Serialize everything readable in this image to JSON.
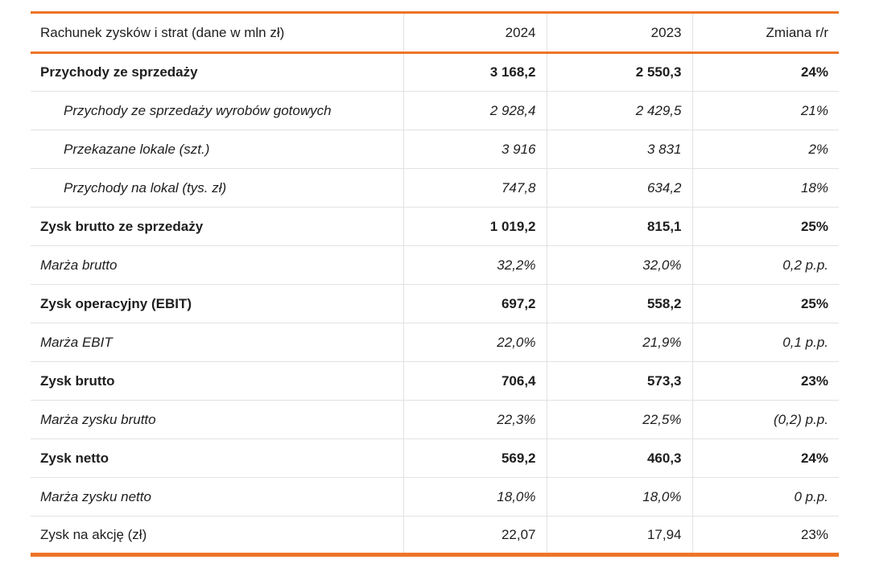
{
  "table": {
    "title_note": "Income statement table (Polish annual report)",
    "colors": {
      "accent": "#ED7428",
      "grid": "#E2E2E2",
      "text": "#1E1E1E"
    },
    "header": {
      "label": "Rachunek zysków i strat (dane w mln zł)",
      "col_2024": "2024",
      "col_2023": "2023",
      "col_change": "Zmiana r/r"
    },
    "rows": [
      {
        "label": "Przychody ze sprzedaży",
        "v2024": "3 168,2",
        "v2023": "2 550,3",
        "change": "24%",
        "style": "bold"
      },
      {
        "label": "Przychody ze sprzedaży wyrobów gotowych",
        "v2024": "2 928,4",
        "v2023": "2 429,5",
        "change": "21%",
        "style": "italic-indent"
      },
      {
        "label": "Przekazane lokale (szt.)",
        "v2024": "3 916",
        "v2023": "3 831",
        "change": "2%",
        "style": "italic-indent"
      },
      {
        "label": "Przychody na lokal (tys. zł)",
        "v2024": "747,8",
        "v2023": "634,2",
        "change": "18%",
        "style": "italic-indent"
      },
      {
        "label": "Zysk brutto ze sprzedaży",
        "v2024": "1 019,2",
        "v2023": "815,1",
        "change": "25%",
        "style": "bold"
      },
      {
        "label": "Marża brutto",
        "v2024": "32,2%",
        "v2023": "32,0%",
        "change": "0,2 p.p.",
        "style": "italic"
      },
      {
        "label": "Zysk operacyjny (EBIT)",
        "v2024": "697,2",
        "v2023": "558,2",
        "change": "25%",
        "style": "bold"
      },
      {
        "label": "Marża EBIT",
        "v2024": "22,0%",
        "v2023": "21,9%",
        "change": "0,1 p.p.",
        "style": "italic"
      },
      {
        "label": "Zysk brutto",
        "v2024": "706,4",
        "v2023": "573,3",
        "change": "23%",
        "style": "bold"
      },
      {
        "label": "Marża zysku brutto",
        "v2024": "22,3%",
        "v2023": "22,5%",
        "change": "(0,2) p.p.",
        "style": "italic"
      },
      {
        "label": "Zysk netto",
        "v2024": "569,2",
        "v2023": "460,3",
        "change": "24%",
        "style": "bold"
      },
      {
        "label": "Marża zysku netto",
        "v2024": "18,0%",
        "v2023": "18,0%",
        "change": "0 p.p.",
        "style": "italic"
      },
      {
        "label": "Zysk na akcję (zł)",
        "v2024": "22,07",
        "v2023": "17,94",
        "change": "23%",
        "style": "regular",
        "cell_styles": {
          "v2023": "italic"
        }
      }
    ]
  }
}
